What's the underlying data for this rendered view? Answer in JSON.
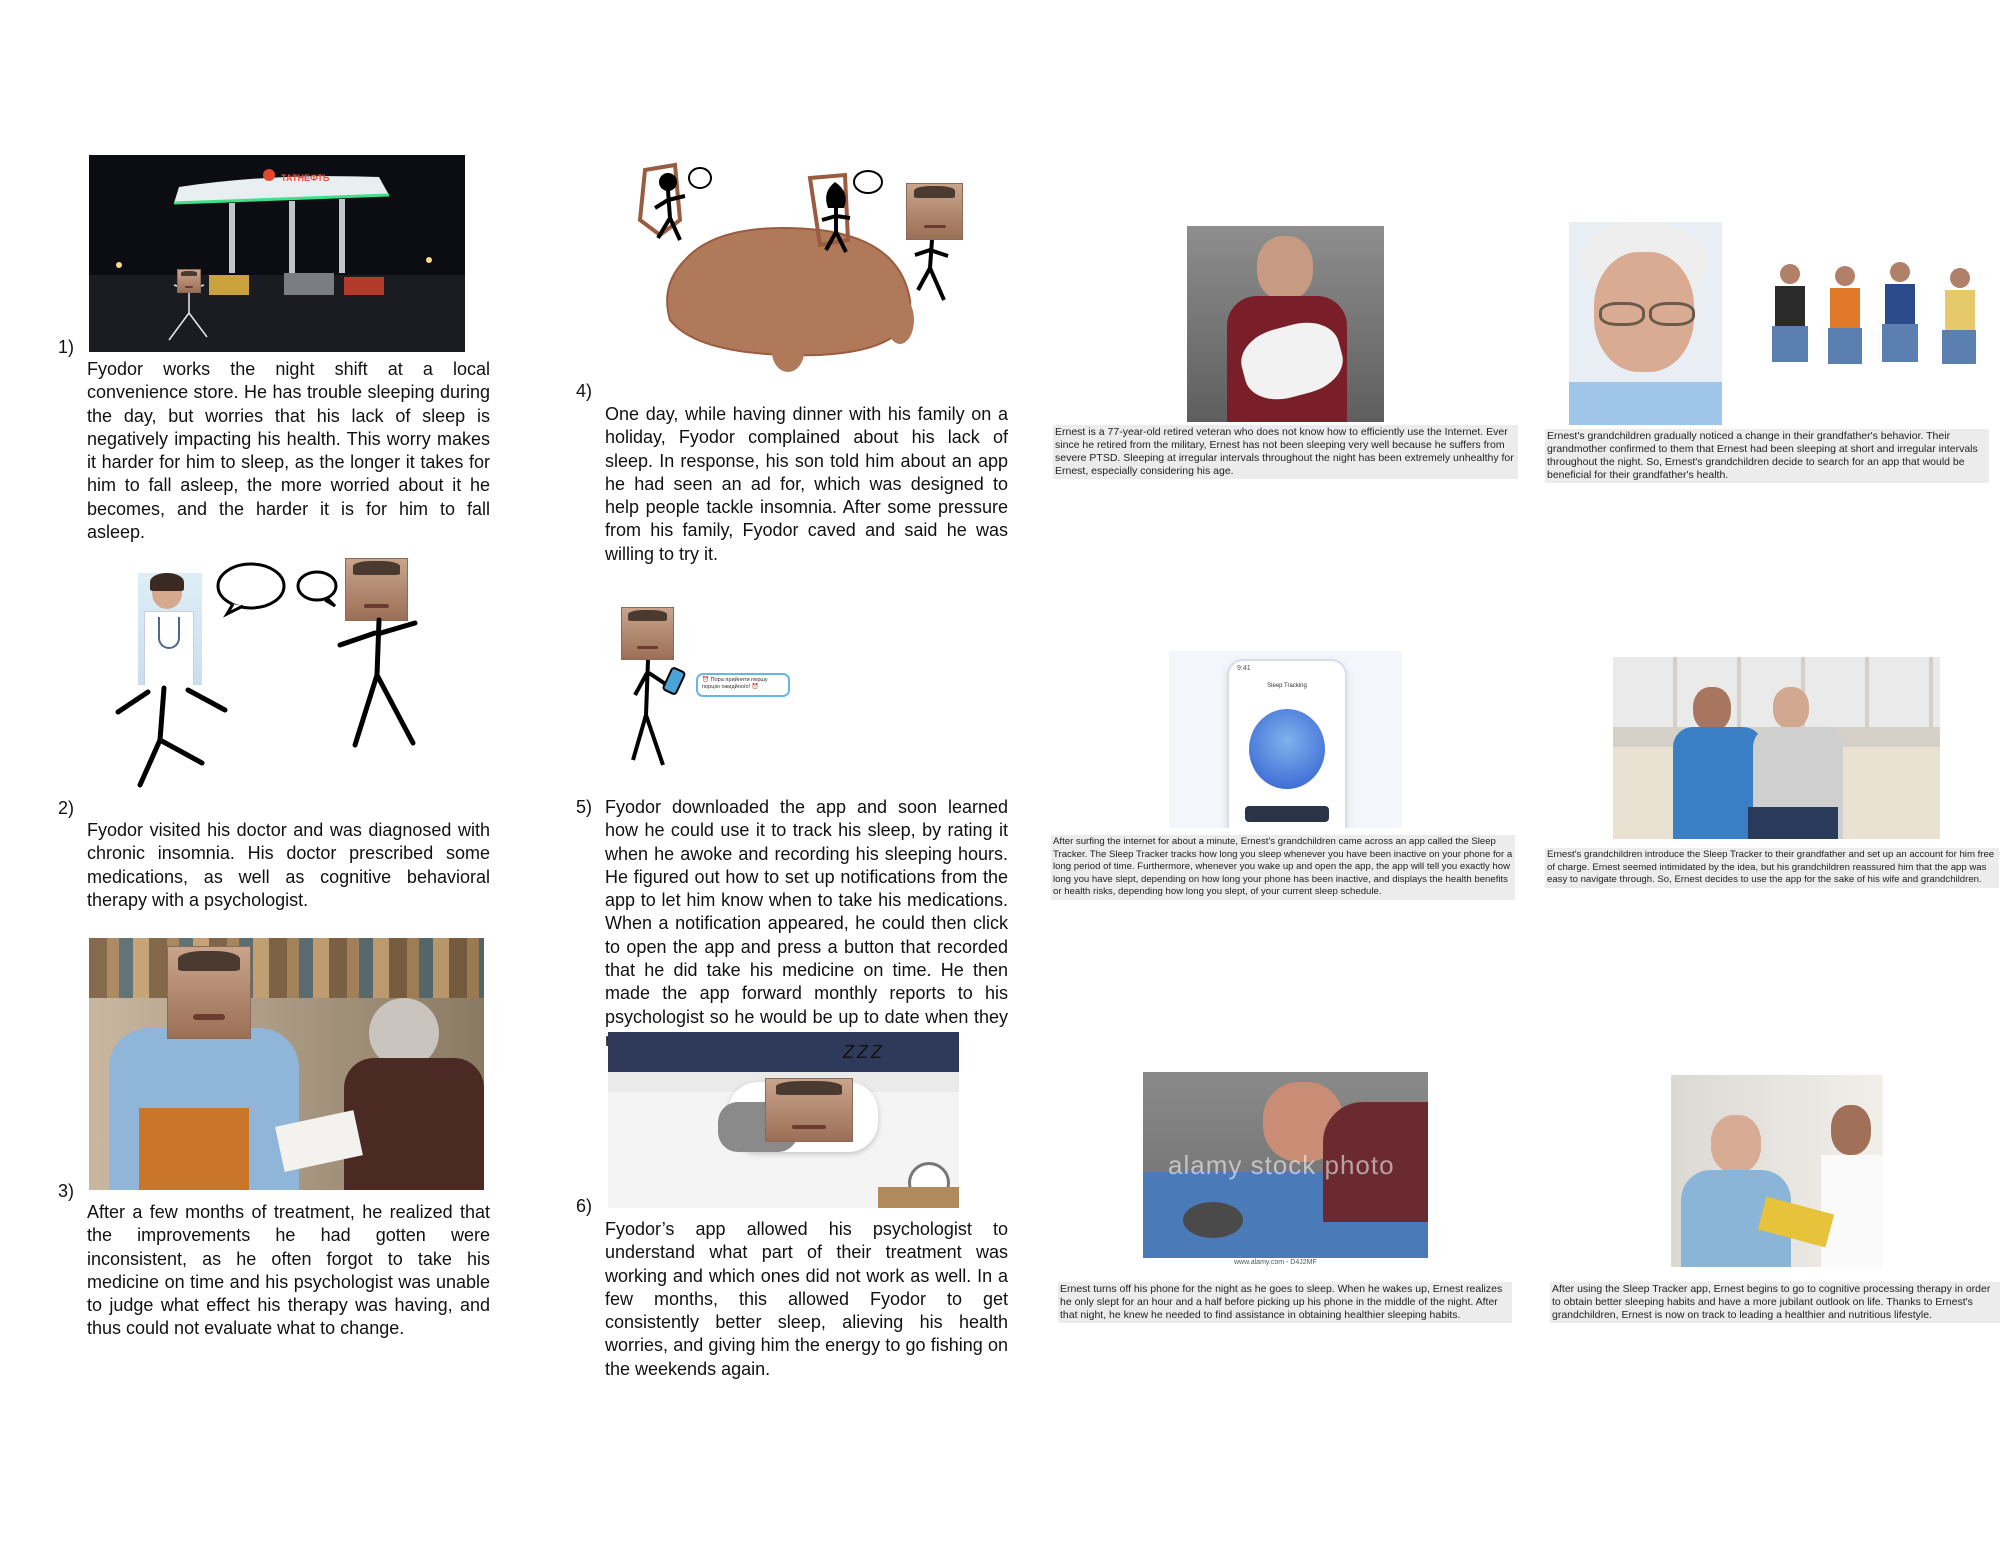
{
  "panels": {
    "p1": {
      "number": "1)",
      "text": "Fyodor works the night shift at a local convenience store. He has trouble sleeping during the day, but worries that his lack of sleep is negatively impacting his health. This worry makes it harder for him to sleep, as the longer it takes for him to fall asleep, the more worried about it he becomes, and the harder it is for him to fall asleep.",
      "sign": "ТАТНЕФТЬ"
    },
    "p2": {
      "number": "2)",
      "text": "Fyodor visited his doctor and was diagnosed with chronic insomnia. His doctor prescribed some medications, as well as cognitive behavioral therapy with a psychologist."
    },
    "p3": {
      "number": "3)",
      "text": "After a few months of treatment, he realized that the improvements he had gotten were inconsistent, as he often forgot to take his medicine on time and his psychologist was unable to judge what effect his therapy was having, and thus could not evaluate what to change."
    },
    "p4": {
      "number": "4)",
      "text": "One day, while having dinner with his family on a holiday, Fyodor complained about his lack of sleep. In response, his son told him about an app he had seen an ad for, which was designed to help people tackle insomnia. After some pressure from his family, Fyodor caved and said he was willing to try it."
    },
    "p5": {
      "number": "5)",
      "text": "Fyodor downloaded the app and soon learned how he could use it to track his sleep, by rating it when he awoke and recording his sleeping hours. He figured out how to set up notifications from the app to let him know when to take his medications. When a notification appeared, he could then click to open the app and press a button that recorded that he did take his medicine on time. He then made the app forward monthly reports to his psychologist so he would be up to date when they met.",
      "notification": "⏰ Пора прийняти першу порцію ожидйноїо! ⏰"
    },
    "p6": {
      "number": "6)",
      "text": "Fyodor’s app allowed his psychologist to understand what part of their treatment was working and which ones did not work as well. In a few months, this allowed Fyodor to get consistently better sleep, alieving his health worries, and giving him the energy to go fishing on the weekends again.",
      "zzz": "Z Z Z"
    }
  },
  "ernest": {
    "c1": "Ernest is a 77-year-old retired veteran who does not know how to efficiently use the Internet. Ever since he retired from the military, Ernest has not been sleeping very well because he suffers from severe PTSD. Sleeping at irregular intervals throughout the night has been extremely unhealthy for Ernest, especially considering his age.",
    "c2": "Ernest's grandchildren gradually noticed a change in their grandfather's behavior. Their grandmother confirmed to them that Ernest had been sleeping at short and irregular intervals throughout the night. So, Ernest's grandchildren decide to search for an app that would be beneficial for their grandfather's health.",
    "c3": "After surfing the internet for about a minute, Ernest's grandchildren came across an app called the Sleep Tracker. The Sleep Tracker tracks how long you sleep whenever you have been inactive on your phone for a long period of time. Furthermore, whenever you wake up and open the app, the app will tell you exactly how long you have slept, depending on how long your phone has been inactive, and displays the health benefits or health risks, depending how long you slept, of your current sleep schedule.",
    "c4": "Ernest's grandchildren introduce the Sleep Tracker to their grandfather and set up an account for him free of charge. Ernest seemed intimidated by the idea, but his grandchildren reassured him that the app was easy to navigate through. So, Ernest decides to use the app for the sake of his wife and grandchildren.",
    "c5": "Ernest turns off his phone for the night as he goes to sleep. When he wakes up, Ernest realizes he only slept for an hour and a half before picking up his phone in the middle of the night. After that night, he knew he needed to find assistance in obtaining healthier sleeping habits.",
    "c6": "After using the Sleep Tracker app, Ernest begins to go to cognitive processing therapy in order to obtain better sleeping habits and have a more jubilant outlook on life. Thanks to Ernest's grandchildren, Ernest is now on track to leading a healthier and nutritious lifestyle.",
    "phone_title": "Sleep Tracking",
    "phone_status_time": "9:41",
    "watermark": "alamy stock photo",
    "watermark_url": "www.alamy.com - D4J2MF"
  },
  "colors": {
    "table": "#b07a5a",
    "chair": "#9a5c40",
    "night": "#0b0d12",
    "canopy_glow": "#3fe08a",
    "app_blue": "#2f5bd0",
    "notif_border": "#67b7e6"
  }
}
